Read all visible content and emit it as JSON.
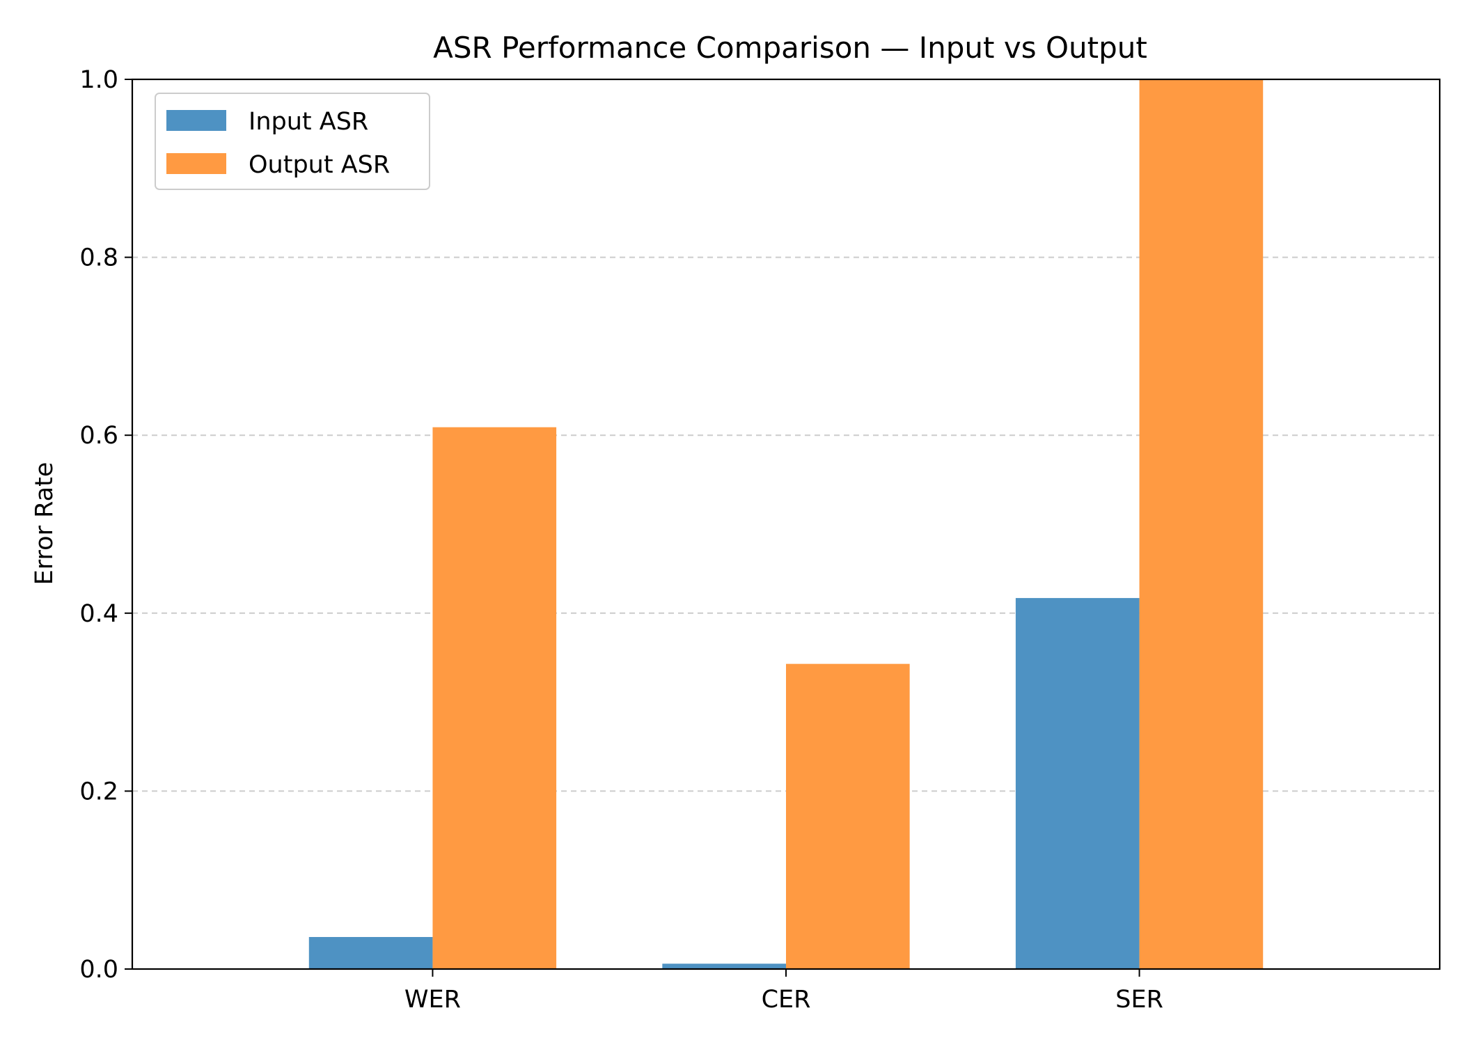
{
  "chart_data": {
    "type": "bar",
    "title": "ASR Performance Comparison — Input vs Output",
    "xlabel": "",
    "ylabel": "Error Rate",
    "categories": [
      "WER",
      "CER",
      "SER"
    ],
    "series": [
      {
        "name": "Input ASR",
        "values": [
          0.036,
          0.006,
          0.417
        ],
        "color": "#4e92c3"
      },
      {
        "name": "Output ASR",
        "values": [
          0.609,
          0.343,
          1.0
        ],
        "color": "#ff9a42"
      }
    ],
    "ylim": [
      0,
      1.0
    ],
    "yticks": [
      0.0,
      0.2,
      0.4,
      0.6,
      0.8,
      1.0
    ],
    "ytick_labels": [
      "0.0",
      "0.2",
      "0.4",
      "0.6",
      "0.8",
      "1.0"
    ],
    "grid": "y-dashed",
    "legend_position": "top-left"
  }
}
